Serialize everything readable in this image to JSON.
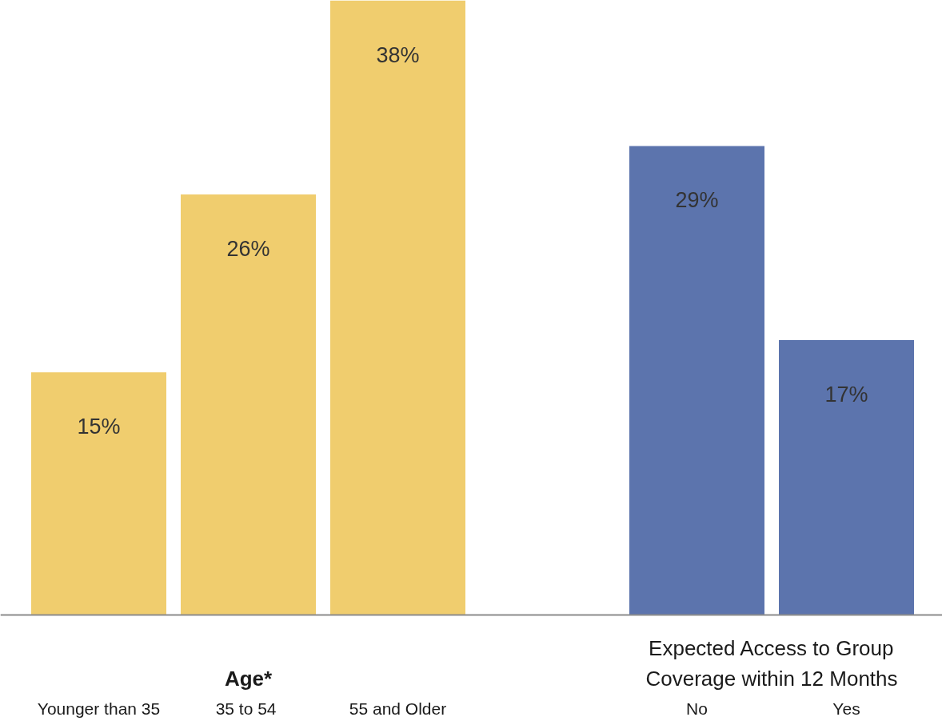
{
  "chart_data": {
    "type": "bar",
    "categories": [
      "Younger than 35",
      "35  to 54",
      "55 and Older",
      null,
      "No",
      "Yes"
    ],
    "series": [
      {
        "name": "Age*",
        "color": "#f0cd6e",
        "values": [
          15,
          26,
          38,
          null,
          null,
          null
        ],
        "value_labels": [
          "15%",
          "26%",
          "38%",
          null,
          null,
          null
        ]
      },
      {
        "name": "Expected Access to Group Coverage within 12 Months",
        "color": "#5c74ad",
        "values": [
          null,
          null,
          null,
          null,
          29,
          17
        ],
        "value_labels": [
          null,
          null,
          null,
          null,
          "29%",
          "17%"
        ]
      }
    ],
    "grid": false
  }
}
